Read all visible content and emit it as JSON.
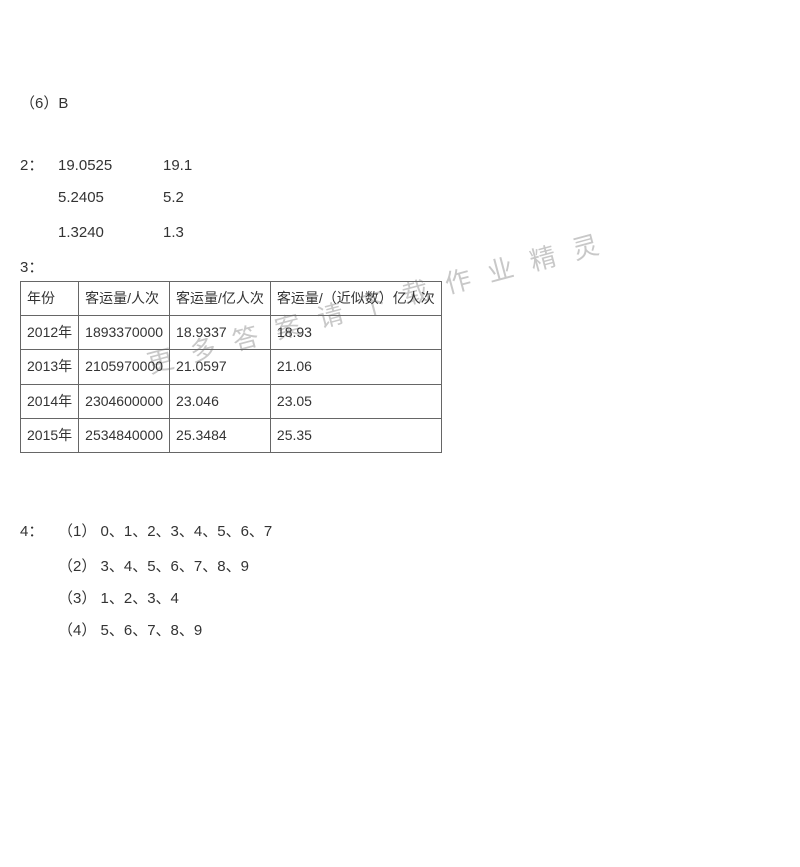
{
  "q6": {
    "label": "（6）B"
  },
  "q2": {
    "label": "2：",
    "rows": [
      {
        "a": "19.0525",
        "b": "19.1"
      },
      {
        "a": "5.2405",
        "b": "5.2"
      },
      {
        "a": "1.3240",
        "b": "1.3"
      }
    ]
  },
  "q3": {
    "label": "3：",
    "headers": [
      "年份",
      "客运量/人次",
      "客运量/亿人次",
      "客运量/（近似数）亿人次"
    ],
    "rows": [
      [
        "2012年",
        "1893370000",
        "18.9337",
        "18.93"
      ],
      [
        "2013年",
        "2105970000",
        "21.0597",
        "21.06"
      ],
      [
        "2014年",
        "2304600000",
        "23.046",
        "23.05"
      ],
      [
        "2015年",
        "2534840000",
        "25.3484",
        "25.35"
      ]
    ],
    "col_widths": [
      "60px",
      "100px",
      "110px",
      "180px"
    ]
  },
  "q4": {
    "label": "4：",
    "subs": [
      {
        "n": "（1）",
        "v": "0、1、2、3、4、5、6、7"
      },
      {
        "n": "（2）",
        "v": "3、4、5、6、7、8、9"
      },
      {
        "n": "（3）",
        "v": "1、2、3、4"
      },
      {
        "n": "（4）",
        "v": "5、6、7、8、9"
      }
    ]
  },
  "watermark": {
    "text": "更多答案请下载作业精灵",
    "color": "#c8c8c8"
  }
}
